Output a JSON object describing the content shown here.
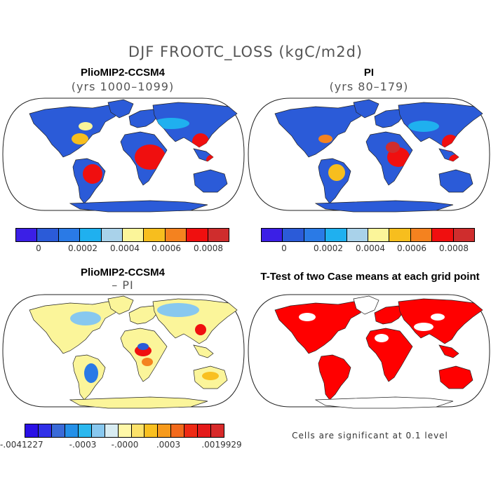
{
  "figure": {
    "title": "DJF FROOTC_LOSS (kgC/m2d)"
  },
  "panels": {
    "top_left": {
      "title": "PlioMIP2-CCSM4",
      "subtitle": "(yrs 1000–1099)"
    },
    "top_right": {
      "title": "PI",
      "subtitle": "(yrs 80–179)"
    },
    "bottom_left": {
      "title": "PlioMIP2-CCSM4",
      "subtitle": "– PI"
    },
    "bottom_right": {
      "title": "T-Test of two Case means at each grid point",
      "note": "Cells are significant at 0.1 level"
    }
  },
  "colorbars": {
    "top": {
      "colors": [
        "#3b1fe6",
        "#2b5bd8",
        "#2a7ae6",
        "#1fb0ef",
        "#a9d2ea",
        "#fbf59a",
        "#f7be1e",
        "#f4821f",
        "#f00f0f",
        "#cf2d2d"
      ],
      "labels": [
        "0",
        "0.0002",
        "0.0004",
        "0.0006",
        "0.0008"
      ]
    },
    "bottom": {
      "colors": [
        "#2a10e6",
        "#3030e8",
        "#3a6ad8",
        "#2490e8",
        "#2bb8ef",
        "#88c8ef",
        "#d8ecf2",
        "#fff8a8",
        "#fce26a",
        "#f9c020",
        "#f79a1c",
        "#f26a1c",
        "#ee2a14",
        "#e41a1a",
        "#d82a2a"
      ],
      "labels": [
        "-.0041227",
        "-.0003",
        "-.0000",
        ".0003",
        ".0019929"
      ]
    }
  },
  "chart_data": [
    {
      "type": "heatmap",
      "title": "PlioMIP2-CCSM4",
      "subtitle": "(yrs 1000–1099)",
      "variable": "DJF FROOTC_LOSS",
      "units": "kgC/m2d",
      "projection": "Robinson",
      "colorbar_ticks": [
        0,
        0.0002,
        0.0004,
        0.0006,
        0.0008
      ]
    },
    {
      "type": "heatmap",
      "title": "PI",
      "subtitle": "(yrs 80–179)",
      "variable": "DJF FROOTC_LOSS",
      "units": "kgC/m2d",
      "projection": "Robinson",
      "colorbar_ticks": [
        0,
        0.0002,
        0.0004,
        0.0006,
        0.0008
      ]
    },
    {
      "type": "heatmap",
      "title": "PlioMIP2-CCSM4",
      "subtitle": "– PI",
      "projection": "Robinson",
      "colorbar_range": [
        -0.0041227,
        0.0019929
      ],
      "colorbar_ticks": [
        -0.0003,
        -0.0,
        0.0003
      ]
    },
    {
      "type": "heatmap",
      "title": "T-Test of two Case means at each grid point",
      "projection": "Robinson",
      "significance_level": 0.1,
      "significant_color": "#ff0000"
    }
  ]
}
